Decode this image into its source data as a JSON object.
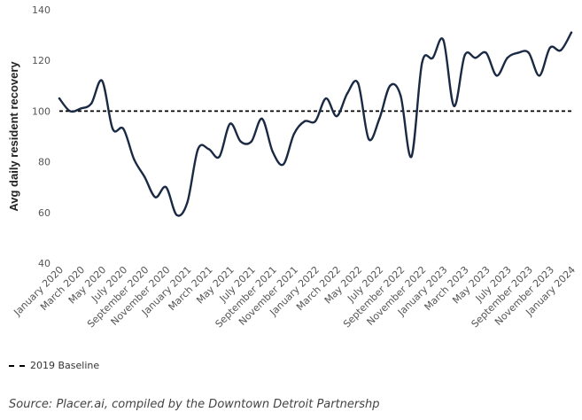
{
  "chart_data": {
    "type": "line",
    "ylabel": "Avg daily resident recovery",
    "xlabel": "",
    "ylim": [
      40,
      140
    ],
    "yticks": [
      40,
      60,
      80,
      100,
      120,
      140
    ],
    "grid": false,
    "x_tick_labels": [
      "January 2020",
      "March 2020",
      "May 2020",
      "July 2020",
      "September 2020",
      "November 2020",
      "January 2021",
      "March 2021",
      "May 2021",
      "July 2021",
      "September 2021",
      "November 2021",
      "January 2022",
      "March 2022",
      "May 2022",
      "July 2022",
      "September 2022",
      "November 2022",
      "January 2023",
      "March 2023",
      "May 2023",
      "July 2023",
      "September 2023",
      "November 2023",
      "January 2024"
    ],
    "series": [
      {
        "type": "line",
        "color": "#1b2a44",
        "x": [
          "2020-01",
          "2020-02",
          "2020-03",
          "2020-04",
          "2020-05",
          "2020-06",
          "2020-07",
          "2020-08",
          "2020-09",
          "2020-10",
          "2020-11",
          "2020-12",
          "2021-01",
          "2021-02",
          "2021-03",
          "2021-04",
          "2021-05",
          "2021-06",
          "2021-07",
          "2021-08",
          "2021-09",
          "2021-10",
          "2021-11",
          "2021-12",
          "2022-01",
          "2022-02",
          "2022-03",
          "2022-04",
          "2022-05",
          "2022-06",
          "2022-07",
          "2022-08",
          "2022-09",
          "2022-10",
          "2022-11",
          "2022-12",
          "2023-01",
          "2023-02",
          "2023-03",
          "2023-04",
          "2023-05",
          "2023-06",
          "2023-07",
          "2023-08",
          "2023-09",
          "2023-10",
          "2023-11",
          "2023-12",
          "2024-01"
        ],
        "values": [
          105,
          100,
          101,
          103,
          112,
          93,
          93,
          81,
          74,
          66,
          70,
          59,
          64,
          85,
          85,
          82,
          95,
          88,
          88,
          97,
          84,
          79,
          91,
          96,
          96,
          105,
          98,
          107,
          111,
          89,
          97,
          110,
          106,
          82,
          119,
          121,
          128,
          102,
          122,
          121,
          123,
          114,
          121,
          123,
          123,
          114,
          125,
          124,
          131
        ]
      },
      {
        "name": "2019 Baseline",
        "type": "line",
        "style": "dashed",
        "color": "#000000",
        "values": [
          100
        ]
      }
    ],
    "legend": {
      "position": "bottom-left",
      "entries": [
        "2019 Baseline"
      ]
    },
    "source": "Source: Placer.ai, compiled by the Downtown Detroit Partnershp"
  }
}
